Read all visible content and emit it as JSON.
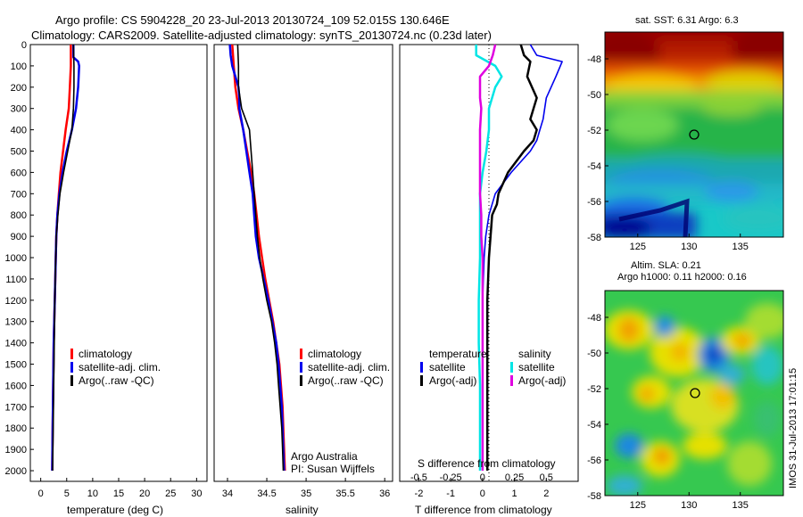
{
  "header": {
    "line1": "Argo profile: CS 5904228_20 23-Jul-2013 20130724_109 52.015S 130.646E",
    "line2": "Climatology: CARS2009. Satellite-adjusted climatology: synTS_20130724.nc (0.23d later)"
  },
  "colors": {
    "climatology": "#ff0000",
    "satellite_adj": "#0000ee",
    "argo": "#000000",
    "sat_salinity": "#00e5e5",
    "argo_salinity": "#e000e0"
  },
  "depth_ticks": [
    "0",
    "100",
    "200",
    "300",
    "400",
    "500",
    "600",
    "700",
    "800",
    "900",
    "1000",
    "1100",
    "1200",
    "1300",
    "1400",
    "1500",
    "1600",
    "1700",
    "1800",
    "1900",
    "2000"
  ],
  "panels": {
    "temperature": {
      "xlabel": "temperature (deg C)",
      "xticks": [
        "0",
        "5",
        "10",
        "15",
        "20",
        "25",
        "30"
      ],
      "legend": [
        "climatology",
        "satellite-adj. clim.",
        "Argo(..raw -QC)"
      ]
    },
    "salinity": {
      "xlabel": "salinity",
      "xticks": [
        "34",
        "34.5",
        "35",
        "35.5",
        "36"
      ],
      "legend": [
        "climatology",
        "satellite-adj. clim.",
        "Argo(..raw -QC)"
      ],
      "note1": "Argo Australia",
      "note2": "PI: Susan Wijffels"
    },
    "difference": {
      "xlabel": "T difference from climatology",
      "top_label": "S difference from climatology",
      "xticks_T": [
        "-2",
        "-1",
        "0",
        "1",
        "2"
      ],
      "xticks_S": [
        "-0.5",
        "-0.25",
        "0",
        "0.25",
        "0.5"
      ],
      "legend_head_T": "temperature",
      "legend_head_S": "salinity",
      "legend_T": [
        "satellite",
        "Argo(-adj)"
      ],
      "legend_S": [
        "satellite",
        "Argo(-adj)"
      ]
    }
  },
  "maps": {
    "sst_title": "sat. SST: 6.31 Argo: 6.3",
    "sla_title1": "Altim. SLA: 0.21",
    "sla_title2": "Argo h1000: 0.11 h2000: 0.16",
    "yticks": [
      "-48",
      "-50",
      "-52",
      "-54",
      "-56",
      "-58"
    ],
    "xticks": [
      "125",
      "130",
      "135"
    ],
    "stamp": "IMOS 31-Jul-2013 17:01:15"
  },
  "chart_data": [
    {
      "type": "line",
      "title": "",
      "xlabel": "temperature (deg C)",
      "ylabel": "",
      "xlim": [
        -2,
        32
      ],
      "ylim": [
        2050,
        0
      ],
      "series": [
        {
          "name": "climatology",
          "y": [
            0,
            100,
            200,
            300,
            400,
            500,
            600,
            700,
            800,
            900,
            1000,
            1200,
            1400,
            1600,
            1800,
            2000
          ],
          "x": [
            5.8,
            5.8,
            5.6,
            5.4,
            4.8,
            4.3,
            3.8,
            3.5,
            3.2,
            3.0,
            2.9,
            2.7,
            2.5,
            2.4,
            2.3,
            2.2
          ]
        },
        {
          "name": "satellite-adj. clim.",
          "y": [
            0,
            60,
            80,
            100,
            200,
            300,
            400,
            500,
            600,
            700,
            800,
            900,
            1000,
            1200,
            1400,
            1600,
            1800,
            2000
          ],
          "x": [
            6.3,
            6.3,
            7.2,
            7.4,
            7.2,
            6.8,
            6.0,
            5.0,
            4.2,
            3.6,
            3.2,
            3.0,
            2.9,
            2.7,
            2.5,
            2.4,
            2.3,
            2.2
          ]
        },
        {
          "name": "Argo(..raw -QC)",
          "y": [
            0,
            100,
            200,
            300,
            400,
            500,
            600,
            700,
            800,
            900,
            1000,
            1200,
            1400,
            1600,
            1800,
            2000
          ],
          "x": [
            6.3,
            6.4,
            6.4,
            6.3,
            6.0,
            5.2,
            4.4,
            3.7,
            3.3,
            3.0,
            2.9,
            2.7,
            2.6,
            2.5,
            2.4,
            2.3
          ]
        }
      ]
    },
    {
      "type": "line",
      "title": "",
      "xlabel": "salinity",
      "ylabel": "",
      "xlim": [
        33.83,
        36.1
      ],
      "ylim": [
        2050,
        0
      ],
      "series": [
        {
          "name": "climatology",
          "y": [
            0,
            100,
            200,
            300,
            400,
            500,
            600,
            700,
            800,
            900,
            1000,
            1100,
            1200,
            1300,
            1400,
            1500,
            1600,
            1700,
            1800,
            1900,
            2000
          ],
          "x": [
            34.06,
            34.08,
            34.1,
            34.14,
            34.2,
            34.25,
            34.3,
            34.34,
            34.37,
            34.4,
            34.44,
            34.48,
            34.53,
            34.58,
            34.62,
            34.66,
            34.68,
            34.7,
            34.71,
            34.72,
            34.73
          ]
        },
        {
          "name": "satellite-adj. clim.",
          "y": [
            0,
            50,
            100,
            150,
            200,
            250,
            300,
            400,
            500,
            600,
            700,
            800,
            900,
            1000,
            1100,
            1200,
            1300,
            1400,
            1500,
            1600,
            1700,
            1800,
            1900,
            2000
          ],
          "x": [
            34.03,
            34.04,
            34.06,
            34.1,
            34.14,
            34.15,
            34.15,
            34.2,
            34.24,
            34.28,
            34.32,
            34.34,
            34.36,
            34.4,
            34.46,
            34.52,
            34.57,
            34.62,
            34.65,
            34.67,
            34.69,
            34.7,
            34.71,
            34.72
          ]
        },
        {
          "name": "Argo(..raw -QC)",
          "y": [
            0,
            100,
            200,
            300,
            400,
            500,
            600,
            700,
            800,
            900,
            1000,
            1100,
            1200,
            1300,
            1400,
            1500,
            1600,
            1700,
            1800,
            1900,
            2000
          ],
          "x": [
            34.13,
            34.14,
            34.14,
            34.18,
            34.28,
            34.3,
            34.32,
            34.34,
            34.36,
            34.38,
            34.41,
            34.45,
            34.5,
            34.56,
            34.6,
            34.63,
            34.65,
            34.67,
            34.69,
            34.7,
            34.71
          ]
        }
      ]
    },
    {
      "type": "line",
      "title": "",
      "xlabel": "T difference from climatology",
      "x2label": "S difference from climatology",
      "ylabel": "",
      "xlim": [
        -2.6,
        3.0
      ],
      "x2lim": [
        -0.65,
        0.75
      ],
      "ylim": [
        2050,
        0
      ],
      "series": [
        {
          "name": "temperature satellite",
          "axis": "T",
          "y": [
            0,
            50,
            80,
            150,
            250,
            350,
            400,
            450,
            500,
            600,
            700,
            800,
            900,
            1000,
            1200,
            1400,
            1600,
            1800,
            2000
          ],
          "x": [
            1.5,
            1.7,
            2.5,
            2.3,
            2.0,
            1.9,
            1.8,
            1.7,
            1.5,
            0.9,
            0.4,
            0.2,
            0.1,
            0.05,
            0.0,
            0.0,
            0.0,
            0.0,
            0.0
          ]
        },
        {
          "name": "temperature Argo(-adj)",
          "axis": "T",
          "y": [
            0,
            50,
            80,
            150,
            250,
            300,
            350,
            400,
            450,
            500,
            600,
            700,
            750,
            800,
            900,
            1000,
            1200,
            1400,
            1600,
            1800,
            2000
          ],
          "x": [
            1.2,
            1.3,
            1.5,
            1.4,
            1.7,
            1.6,
            1.5,
            1.7,
            1.6,
            1.3,
            0.8,
            0.5,
            0.45,
            0.3,
            0.25,
            0.2,
            0.15,
            0.15,
            0.15,
            0.15,
            0.15
          ]
        },
        {
          "name": "salinity satellite",
          "axis": "S",
          "y": [
            0,
            50,
            100,
            150,
            200,
            300,
            400,
            500,
            600,
            700,
            800,
            900,
            1000,
            1200,
            1400,
            1600,
            1800,
            2000
          ],
          "x": [
            -0.05,
            -0.05,
            0.1,
            0.15,
            0.1,
            0.05,
            0.05,
            0.03,
            0.0,
            -0.02,
            -0.02,
            -0.02,
            -0.02,
            -0.03,
            -0.03,
            -0.02,
            -0.02,
            -0.02
          ]
        },
        {
          "name": "salinity Argo(-adj)",
          "axis": "S",
          "y": [
            0,
            50,
            100,
            150,
            200,
            250,
            300,
            400,
            500,
            600,
            700,
            800,
            900,
            1000,
            1200,
            1400,
            1600,
            1800,
            2000
          ],
          "x": [
            0.1,
            0.08,
            0.05,
            -0.02,
            -0.02,
            -0.02,
            -0.01,
            -0.02,
            -0.02,
            -0.02,
            -0.02,
            -0.01,
            -0.01,
            0.0,
            0.0,
            0.0,
            0.0,
            0.0,
            0.0
          ]
        }
      ]
    }
  ]
}
